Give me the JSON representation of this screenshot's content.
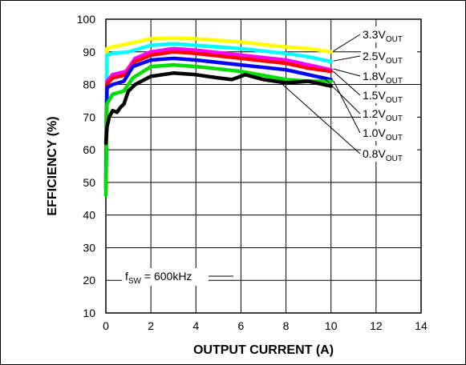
{
  "chart_data": {
    "type": "line",
    "xlabel": "OUTPUT CURRENT (A)",
    "ylabel": "EFFICIENCY (%)",
    "xlim": [
      0,
      14
    ],
    "ylim": [
      10,
      100
    ],
    "xticks": [
      "0",
      "2",
      "4",
      "6",
      "8",
      "10",
      "12",
      "14"
    ],
    "yticks": [
      "10",
      "20",
      "30",
      "40",
      "50",
      "60",
      "70",
      "80",
      "90",
      "100"
    ],
    "grid": true,
    "legend_placement": "right",
    "annotation": {
      "text": "f",
      "sub": "SW",
      "rest": " = 600kHz"
    },
    "series": [
      {
        "name": "3.3V",
        "sub": "OUT",
        "color": "#ffff00",
        "x": [
          0,
          0.05,
          0.3,
          1,
          2,
          3,
          4,
          6,
          8,
          9,
          10
        ],
        "y": [
          60,
          91,
          91.5,
          92.5,
          94,
          94.2,
          94,
          93,
          91.5,
          91,
          90
        ]
      },
      {
        "name": "2.5V",
        "sub": "OUT",
        "color": "#00ffff",
        "x": [
          0,
          0.05,
          0.3,
          1,
          2,
          3,
          4,
          6,
          8,
          9,
          10
        ],
        "y": [
          55,
          89,
          89.5,
          90,
          92,
          92.5,
          92,
          91,
          89.5,
          88.5,
          87
        ]
      },
      {
        "name": "1.8V",
        "sub": "OUT",
        "color": "#ff00ff",
        "x": [
          0,
          0.05,
          0.3,
          0.9,
          1.3,
          2,
          3,
          4,
          6,
          8,
          9,
          10
        ],
        "y": [
          52,
          81,
          83,
          84,
          88,
          90,
          91,
          90.5,
          89,
          87.5,
          86,
          84.5
        ]
      },
      {
        "name": "1.5V",
        "sub": "OUT",
        "color": "#ff0000",
        "x": [
          0,
          0.05,
          0.3,
          0.9,
          1.3,
          2,
          3,
          4,
          6,
          8,
          9,
          10
        ],
        "y": [
          50,
          80,
          82,
          83,
          87,
          89,
          90,
          89.5,
          88,
          86.5,
          85,
          84
        ]
      },
      {
        "name": "1.2V",
        "sub": "OUT",
        "color": "#0000ff",
        "x": [
          0,
          0.05,
          0.3,
          0.8,
          1.2,
          2,
          3,
          4,
          6,
          8,
          9,
          10
        ],
        "y": [
          48,
          79,
          80,
          81,
          85.5,
          87.5,
          88,
          87.5,
          86,
          84.5,
          83,
          81.5
        ]
      },
      {
        "name": "1.0V",
        "sub": "OUT",
        "color": "#00dd00",
        "x": [
          0,
          0.05,
          0.3,
          0.8,
          1.2,
          2,
          3,
          4,
          6,
          8,
          9,
          10
        ],
        "y": [
          46,
          74,
          77,
          78,
          82,
          85.5,
          86,
          85.5,
          84,
          81.5,
          81,
          81
        ]
      },
      {
        "name": "0.8V",
        "sub": "OUT",
        "color": "#000000",
        "x": [
          0,
          0.05,
          0.15,
          0.3,
          0.5,
          0.65,
          0.8,
          1.0,
          1.3,
          2,
          3,
          4,
          5,
          5.6,
          6.2,
          7,
          8,
          9,
          10
        ],
        "y": [
          62,
          67,
          70,
          72,
          71.5,
          73,
          74,
          78,
          80,
          82.5,
          83.5,
          83,
          82,
          81.5,
          83,
          81.5,
          80.5,
          81,
          79.5
        ]
      }
    ]
  }
}
